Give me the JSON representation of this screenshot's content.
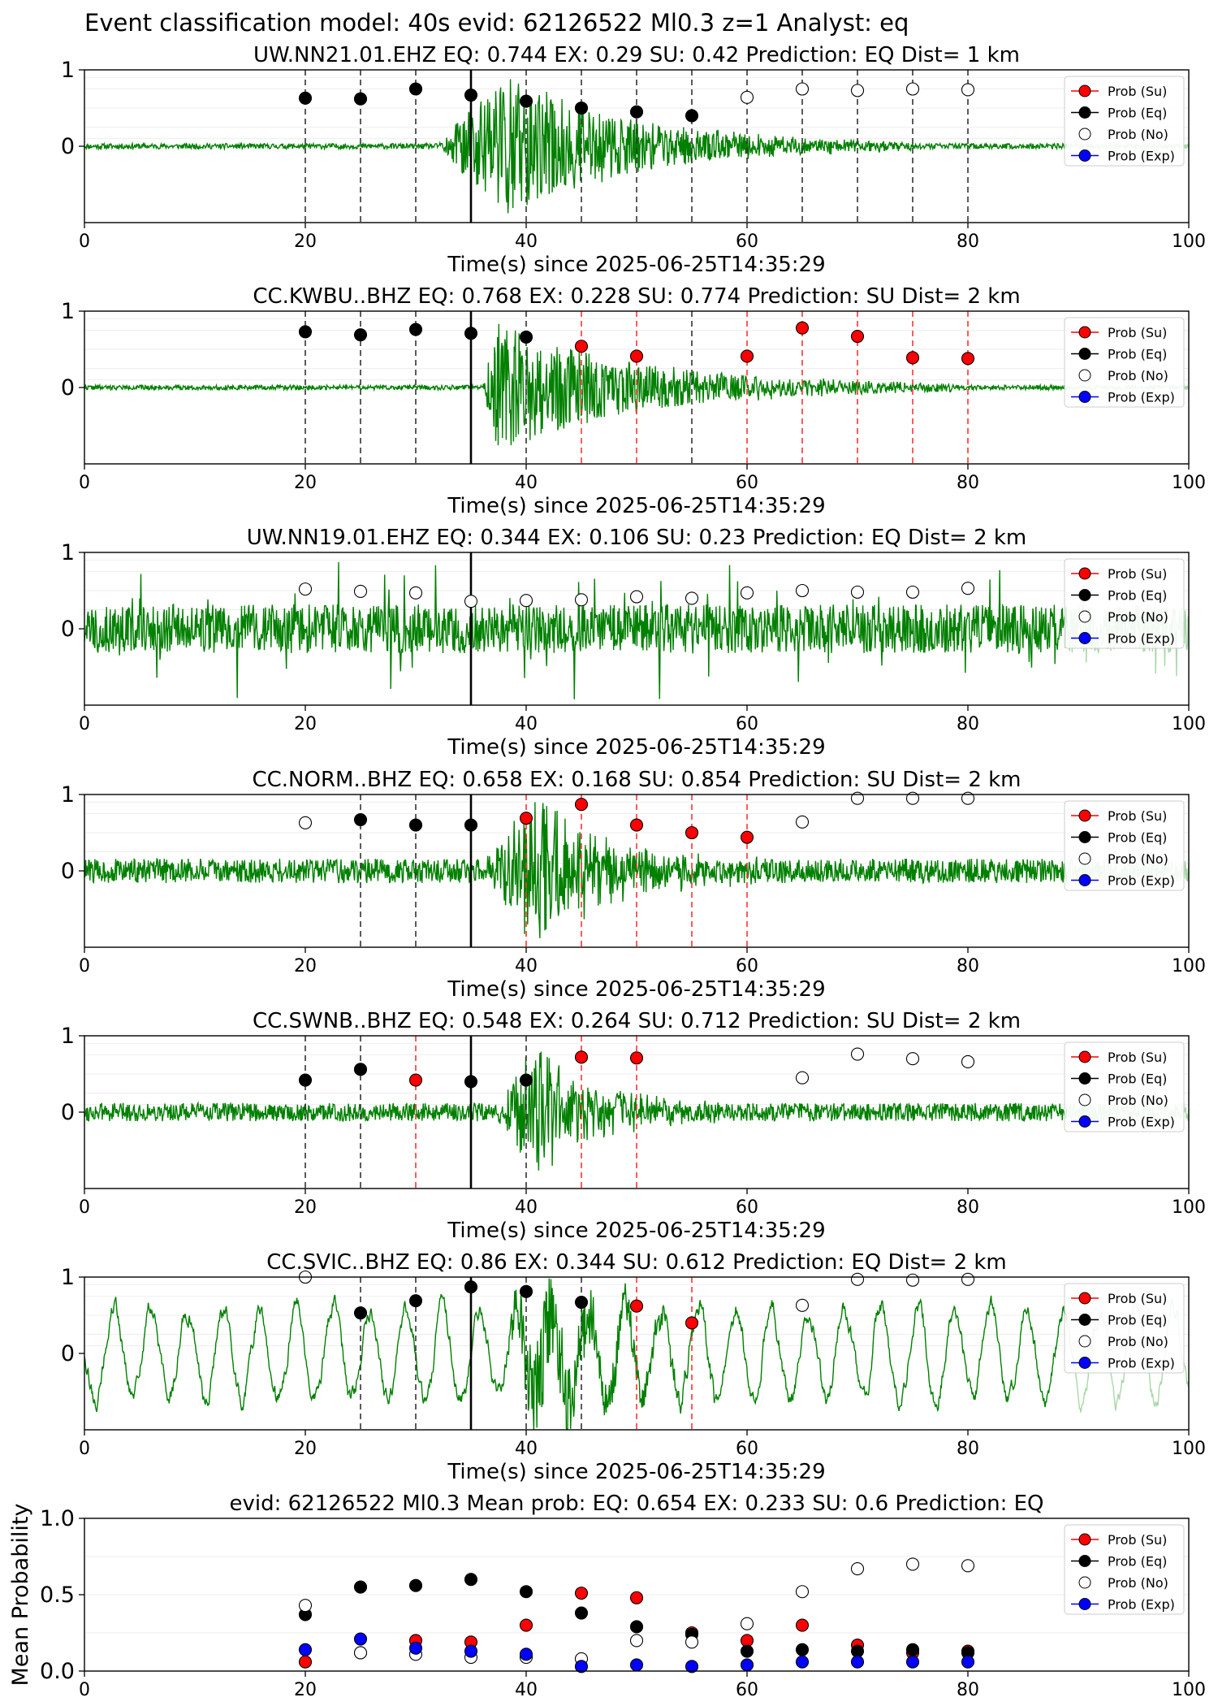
{
  "figure_title": "Event classification model: 40s evid: 62126522 Ml0.3 z=1 Analyst: eq",
  "legend_labels": [
    "Prob (Su)",
    "Prob (Eq)",
    "Prob (No)",
    "Prob (Exp)"
  ],
  "colors": {
    "su": "#ff0000",
    "eq": "#000000",
    "no": "#ffffff",
    "exp": "#0000ff",
    "waveform": "#008000",
    "waveform_faded": "#a8d8a8",
    "eq_line": "#333333",
    "su_line": "#ff3333",
    "pick_line": "#000000"
  },
  "chart_data": [
    {
      "type": "scatter",
      "title": "UW.NN21.01.EHZ   EQ: 0.744  EX: 0.29  SU: 0.42   Prediction: EQ    Dist= 1 km",
      "xlabel": "Time(s) since 2025-06-25T14:35:29",
      "ylabel": "",
      "xlim": [
        0,
        100
      ],
      "ylim": [
        -1,
        1
      ],
      "xticks": [
        0,
        20,
        40,
        60,
        80,
        100
      ],
      "yticks": [
        0,
        1
      ],
      "pick_time": 35,
      "trace": {
        "seed": 11,
        "noise": 0.035,
        "faded_from": 89,
        "bursts": [
          {
            "start": 32,
            "peak": 37.5,
            "end": 75,
            "amp": 1.0
          },
          {
            "start": 55,
            "peak": 57,
            "end": 62,
            "amp": 0.1
          }
        ]
      },
      "windows": [
        20,
        25,
        30,
        35,
        40,
        45,
        50,
        55,
        60,
        65,
        70,
        75,
        80
      ],
      "series": [
        {
          "name": "Prob (Su)",
          "class": "su",
          "x": [],
          "y": []
        },
        {
          "name": "Prob (Eq)",
          "class": "eq",
          "x": [
            20,
            25,
            30,
            35,
            40,
            45,
            50,
            55
          ],
          "y": [
            0.63,
            0.62,
            0.75,
            0.67,
            0.59,
            0.5,
            0.45,
            0.4
          ]
        },
        {
          "name": "Prob (No)",
          "class": "no",
          "x": [
            60,
            65,
            70,
            75,
            80
          ],
          "y": [
            0.64,
            0.75,
            0.73,
            0.75,
            0.74
          ]
        },
        {
          "name": "Prob (Exp)",
          "class": "exp",
          "x": [],
          "y": []
        }
      ]
    },
    {
      "type": "scatter",
      "title": "CC.KWBU..BHZ   EQ: 0.768  EX: 0.228  SU: 0.774   Prediction: SU    Dist= 2 km",
      "xlabel": "Time(s) since 2025-06-25T14:35:29",
      "ylabel": "",
      "xlim": [
        0,
        100
      ],
      "ylim": [
        -1,
        1
      ],
      "xticks": [
        0,
        20,
        40,
        60,
        80,
        100
      ],
      "yticks": [
        0,
        1
      ],
      "pick_time": 35,
      "trace": {
        "seed": 22,
        "noise": 0.03,
        "faded_from": 89,
        "bursts": [
          {
            "start": 36,
            "peak": 37.5,
            "end": 80,
            "amp": 0.85
          },
          {
            "start": 67,
            "peak": 71,
            "end": 76,
            "amp": 0.1
          }
        ]
      },
      "windows": [
        20,
        25,
        30,
        35,
        40,
        45,
        50,
        55,
        60,
        65,
        70,
        75,
        80
      ],
      "series": [
        {
          "name": "Prob (Su)",
          "class": "su",
          "x": [
            45,
            50,
            60,
            65,
            70,
            75,
            80
          ],
          "y": [
            0.54,
            0.41,
            0.41,
            0.78,
            0.67,
            0.39,
            0.38
          ]
        },
        {
          "name": "Prob (Eq)",
          "class": "eq",
          "x": [
            20,
            25,
            30,
            35,
            40
          ],
          "y": [
            0.73,
            0.69,
            0.76,
            0.71,
            0.66
          ]
        },
        {
          "name": "Prob (No)",
          "class": "no",
          "x": [],
          "y": []
        },
        {
          "name": "Prob (Exp)",
          "class": "exp",
          "x": [],
          "y": []
        }
      ]
    },
    {
      "type": "scatter",
      "title": "UW.NN19.01.EHZ   EQ: 0.344  EX: 0.106  SU: 0.23   Prediction: EQ    Dist= 2 km",
      "xlabel": "Time(s) since 2025-06-25T14:35:29",
      "ylabel": "",
      "xlim": [
        0,
        100
      ],
      "ylim": [
        -1,
        1
      ],
      "xticks": [
        0,
        20,
        40,
        60,
        80,
        100
      ],
      "yticks": [
        0,
        1
      ],
      "pick_time": 35,
      "trace": {
        "seed": 33,
        "noise": 0.32,
        "spiky": 0.45,
        "faded_from": 89,
        "bursts": []
      },
      "windows": [],
      "series": [
        {
          "name": "Prob (Su)",
          "class": "su",
          "x": [],
          "y": []
        },
        {
          "name": "Prob (Eq)",
          "class": "eq",
          "x": [],
          "y": []
        },
        {
          "name": "Prob (No)",
          "class": "no",
          "x": [
            20,
            25,
            30,
            35,
            40,
            45,
            50,
            55,
            60,
            65,
            70,
            75,
            80
          ],
          "y": [
            0.52,
            0.49,
            0.47,
            0.36,
            0.37,
            0.38,
            0.42,
            0.4,
            0.47,
            0.5,
            0.48,
            0.48,
            0.53
          ]
        },
        {
          "name": "Prob (Exp)",
          "class": "exp",
          "x": [],
          "y": []
        }
      ]
    },
    {
      "type": "scatter",
      "title": "CC.NORM..BHZ   EQ: 0.658  EX: 0.168  SU: 0.854   Prediction: SU    Dist= 2 km",
      "xlabel": "Time(s) since 2025-06-25T14:35:29",
      "ylabel": "",
      "xlim": [
        0,
        100
      ],
      "ylim": [
        -1,
        1
      ],
      "xticks": [
        0,
        20,
        40,
        60,
        80,
        100
      ],
      "yticks": [
        0,
        1
      ],
      "pick_time": 35,
      "trace": {
        "seed": 44,
        "noise": 0.16,
        "faded_from": 89,
        "bursts": [
          {
            "start": 36,
            "peak": 41,
            "end": 62,
            "amp": 0.95
          }
        ]
      },
      "windows": [
        25,
        30,
        35,
        40,
        45,
        50,
        55,
        60
      ],
      "series": [
        {
          "name": "Prob (Su)",
          "class": "su",
          "x": [
            40,
            45,
            50,
            55,
            60
          ],
          "y": [
            0.69,
            0.87,
            0.6,
            0.5,
            0.44
          ]
        },
        {
          "name": "Prob (Eq)",
          "class": "eq",
          "x": [
            25,
            30,
            35
          ],
          "y": [
            0.67,
            0.6,
            0.6
          ]
        },
        {
          "name": "Prob (No)",
          "class": "no",
          "x": [
            20,
            65,
            70,
            75,
            80
          ],
          "y": [
            0.63,
            0.64,
            0.95,
            0.95,
            0.95
          ]
        },
        {
          "name": "Prob (Exp)",
          "class": "exp",
          "x": [],
          "y": []
        }
      ]
    },
    {
      "type": "scatter",
      "title": "CC.SWNB..BHZ   EQ: 0.548  EX: 0.264  SU: 0.712   Prediction: SU    Dist= 2 km",
      "xlabel": "Time(s) since 2025-06-25T14:35:29",
      "ylabel": "",
      "xlim": [
        0,
        100
      ],
      "ylim": [
        -1,
        1
      ],
      "xticks": [
        0,
        20,
        40,
        60,
        80,
        100
      ],
      "yticks": [
        0,
        1
      ],
      "pick_time": 35,
      "trace": {
        "seed": 55,
        "noise": 0.12,
        "faded_from": 89,
        "bursts": [
          {
            "start": 37,
            "peak": 41,
            "end": 58,
            "amp": 0.85
          }
        ]
      },
      "windows": [
        20,
        25,
        30,
        35,
        40,
        45,
        50
      ],
      "series": [
        {
          "name": "Prob (Su)",
          "class": "su",
          "x": [
            30,
            45,
            50
          ],
          "y": [
            0.42,
            0.72,
            0.71
          ]
        },
        {
          "name": "Prob (Eq)",
          "class": "eq",
          "x": [
            20,
            25,
            35,
            40
          ],
          "y": [
            0.42,
            0.56,
            0.4,
            0.42
          ]
        },
        {
          "name": "Prob (No)",
          "class": "no",
          "x": [
            65,
            70,
            75,
            80
          ],
          "y": [
            0.45,
            0.76,
            0.7,
            0.66
          ]
        },
        {
          "name": "Prob (Exp)",
          "class": "exp",
          "x": [],
          "y": []
        }
      ]
    },
    {
      "type": "scatter",
      "title": "CC.SVIC..BHZ   EQ: 0.86  EX: 0.344  SU: 0.612   Prediction: EQ    Dist= 2 km",
      "xlabel": "Time(s) since 2025-06-25T14:35:29",
      "ylabel": "",
      "xlim": [
        0,
        100
      ],
      "ylim": [
        -1,
        1
      ],
      "xticks": [
        0,
        20,
        40,
        60,
        80,
        100
      ],
      "yticks": [
        0,
        1
      ],
      "pick_time": 35,
      "trace": {
        "seed": 66,
        "noise": 0.09,
        "smooth": true,
        "faded_from": 89,
        "bursts": [
          {
            "start": 38,
            "peak": 41,
            "end": 60,
            "amp": 0.8
          }
        ]
      },
      "windows": [
        25,
        30,
        35,
        40,
        45,
        50,
        55
      ],
      "series": [
        {
          "name": "Prob (Su)",
          "class": "su",
          "x": [
            50,
            55
          ],
          "y": [
            0.62,
            0.4
          ]
        },
        {
          "name": "Prob (Eq)",
          "class": "eq",
          "x": [
            25,
            30,
            35,
            40,
            45
          ],
          "y": [
            0.53,
            0.69,
            0.87,
            0.81,
            0.67
          ]
        },
        {
          "name": "Prob (No)",
          "class": "no",
          "x": [
            20,
            65,
            70,
            75,
            80
          ],
          "y": [
            1.0,
            0.63,
            0.97,
            0.96,
            0.97
          ]
        },
        {
          "name": "Prob (Exp)",
          "class": "exp",
          "x": [],
          "y": []
        }
      ]
    },
    {
      "type": "scatter",
      "title": "evid: 62126522  Ml0.3   Mean prob:   EQ: 0.654  EX: 0.233  SU: 0.6   Prediction: EQ",
      "xlabel": "",
      "ylabel": "Mean Probability",
      "xlim": [
        0,
        100
      ],
      "ylim": [
        0,
        1
      ],
      "xticks": [
        0,
        20,
        40,
        60,
        80,
        100
      ],
      "yticks": [
        0.0,
        0.5,
        1.0
      ],
      "ytick_labels": [
        "0.0",
        "0.5",
        "1.0"
      ],
      "grid": true,
      "series": [
        {
          "name": "Prob (Su)",
          "class": "su",
          "x": [
            20,
            25,
            30,
            35,
            40,
            45,
            50,
            55,
            60,
            65,
            70,
            75,
            80
          ],
          "y": [
            0.06,
            0.12,
            0.2,
            0.19,
            0.3,
            0.51,
            0.48,
            0.25,
            0.2,
            0.3,
            0.17,
            0.12,
            0.13
          ]
        },
        {
          "name": "Prob (Eq)",
          "class": "eq",
          "x": [
            20,
            25,
            30,
            35,
            40,
            45,
            50,
            55,
            60,
            65,
            70,
            75,
            80
          ],
          "y": [
            0.37,
            0.55,
            0.56,
            0.6,
            0.52,
            0.38,
            0.29,
            0.24,
            0.13,
            0.14,
            0.13,
            0.14,
            0.12
          ]
        },
        {
          "name": "Prob (No)",
          "class": "no",
          "x": [
            20,
            25,
            30,
            35,
            40,
            45,
            50,
            55,
            60,
            65,
            70,
            75,
            80
          ],
          "y": [
            0.43,
            0.12,
            0.11,
            0.09,
            0.09,
            0.08,
            0.2,
            0.19,
            0.31,
            0.52,
            0.67,
            0.7,
            0.69
          ]
        },
        {
          "name": "Prob (Exp)",
          "class": "exp",
          "x": [
            20,
            25,
            30,
            35,
            40,
            45,
            50,
            55,
            60,
            65,
            70,
            75,
            80
          ],
          "y": [
            0.14,
            0.21,
            0.15,
            0.13,
            0.11,
            0.03,
            0.04,
            0.03,
            0.04,
            0.06,
            0.06,
            0.06,
            0.06
          ]
        }
      ]
    }
  ]
}
